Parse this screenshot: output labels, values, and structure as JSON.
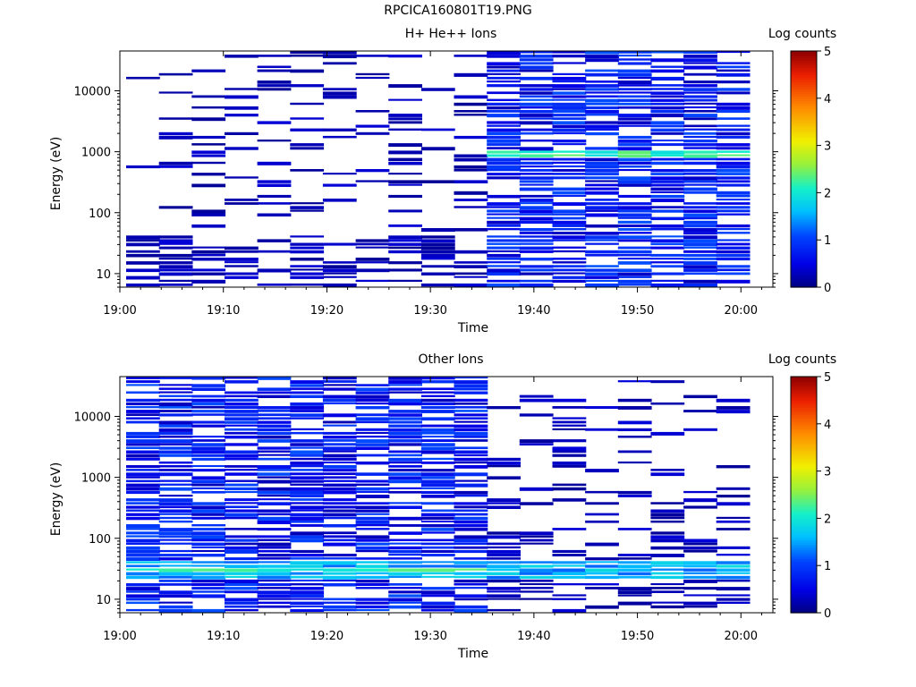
{
  "title": "RPCICA160801T19.PNG",
  "chart_data": [
    {
      "type": "heatmap",
      "title": "H+ He++ Ions",
      "xlabel": "Time",
      "ylabel": "Energy (eV)",
      "x_ticks": [
        "19:00",
        "19:10",
        "19:20",
        "19:30",
        "19:40",
        "19:50",
        "20:00"
      ],
      "x_range": [
        "19:00",
        "20:03"
      ],
      "y_scale": "log",
      "y_ticks": [
        "10",
        "100",
        "1000",
        "10000"
      ],
      "y_range": [
        6,
        45000
      ],
      "colorbar": {
        "label": "Log counts",
        "range": [
          0,
          5
        ],
        "ticks": [
          "0",
          "1",
          "2",
          "3",
          "4",
          "5"
        ]
      },
      "notes": "sparse counts before 19:33, dense low counts after; bright line near 1000 eV after 19:33",
      "dense_after": "19:33",
      "bright_band_eV": 900
    },
    {
      "type": "heatmap",
      "title": "Other Ions",
      "xlabel": "Time",
      "ylabel": "Energy (eV)",
      "x_ticks": [
        "19:00",
        "19:10",
        "19:20",
        "19:30",
        "19:40",
        "19:50",
        "20:00"
      ],
      "x_range": [
        "19:00",
        "20:03"
      ],
      "y_scale": "log",
      "y_ticks": [
        "10",
        "100",
        "1000",
        "10000"
      ],
      "y_range": [
        6,
        45000
      ],
      "colorbar": {
        "label": "Log counts",
        "range": [
          0,
          5
        ],
        "ticks": [
          "0",
          "1",
          "2",
          "3",
          "4",
          "5"
        ]
      },
      "dense_before": "19:33",
      "bright_band_eV": 30
    }
  ]
}
